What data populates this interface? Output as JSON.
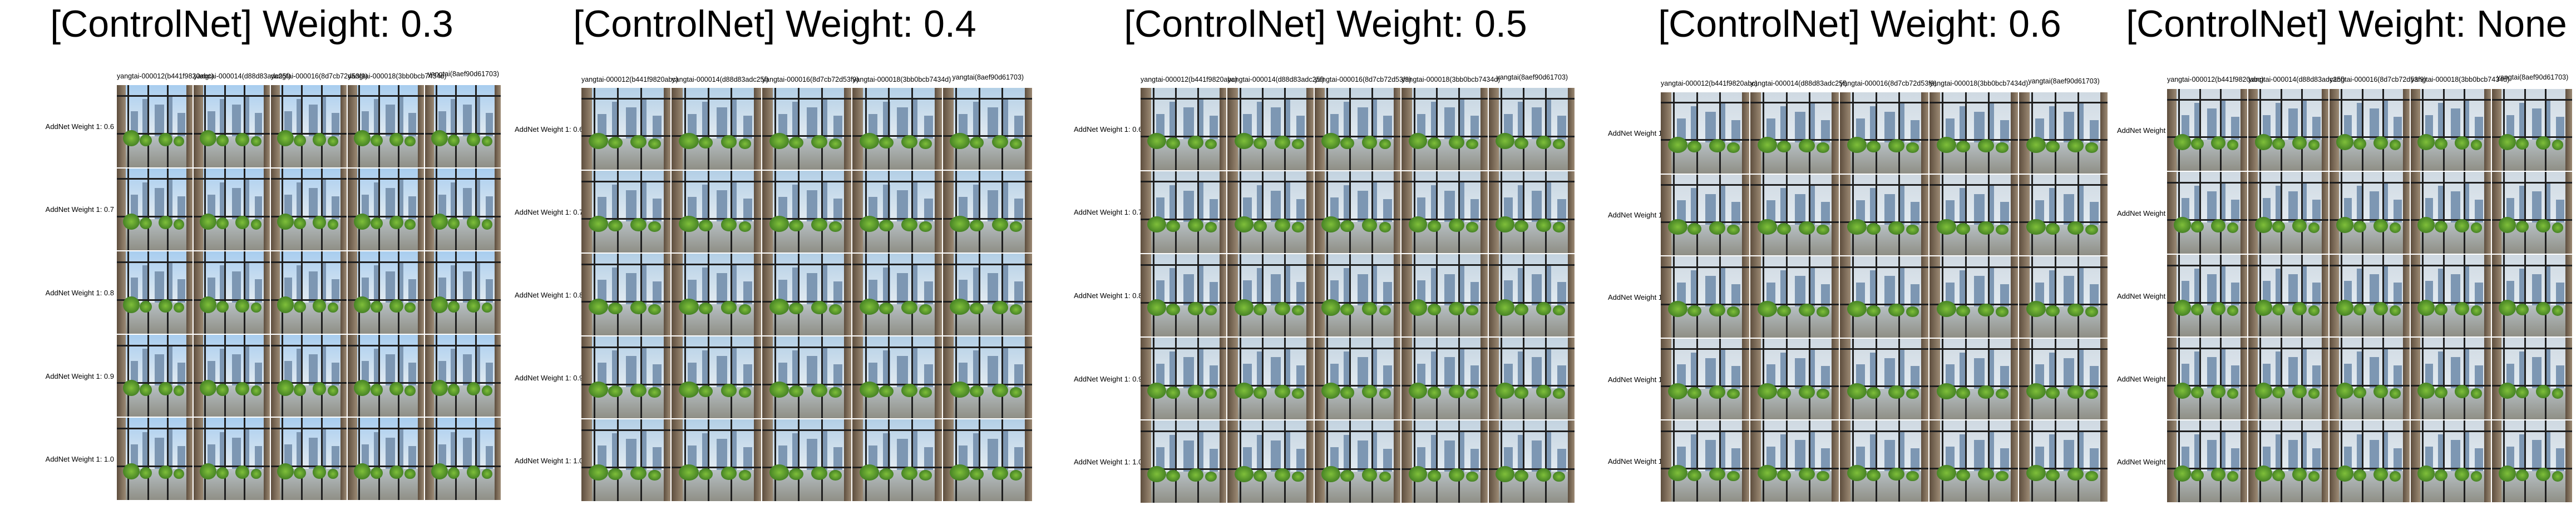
{
  "panels": [
    {
      "title": "[ControlNet] Weight: 0.3",
      "tone": "#a8cdef"
    },
    {
      "title": "[ControlNet] Weight: 0.4",
      "tone": "#b3cfe6"
    },
    {
      "title": "[ControlNet] Weight: 0.5",
      "tone": "#c3d3e0"
    },
    {
      "title": "[ControlNet] Weight: 0.6",
      "tone": "#cfd9e2"
    },
    {
      "title": "[ControlNet] Weight: None",
      "tone": "#cfd9e2"
    }
  ],
  "columns": [
    "yangtai-000012(b441f9820abc)",
    "yangtai-000014(d88d83adc25f)",
    "yangtai-000016(8d7cb72d53f9)",
    "yangtai-000018(3bb0bcb7434d)",
    "yangtai(8aef90d61703)"
  ],
  "rows": [
    "AddNet Weight 1: 0.6",
    "AddNet Weight 1: 0.7",
    "AddNet Weight 1: 0.8",
    "AddNet Weight 1: 0.9",
    "AddNet Weight 1: 1.0"
  ]
}
